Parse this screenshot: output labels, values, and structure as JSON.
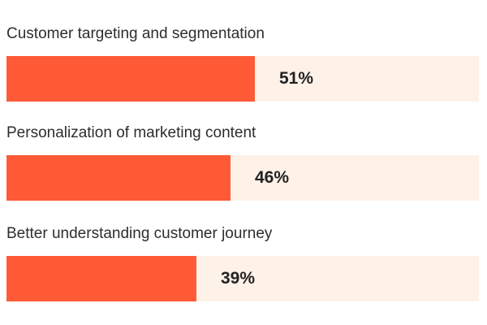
{
  "chart_data": {
    "type": "bar",
    "orientation": "horizontal",
    "categories": [
      "Customer targeting and segmentation",
      "Personalization of marketing content",
      "Better understanding customer journey"
    ],
    "values": [
      51,
      46,
      39
    ],
    "value_labels": [
      "51%",
      "46%",
      "39%"
    ],
    "unit": "%",
    "xlim": [
      0,
      100
    ],
    "grid": false,
    "legend": "none",
    "colors": {
      "bar": "#ff5a36",
      "track": "#fdf1e8",
      "text": "#2d2d2d"
    }
  }
}
